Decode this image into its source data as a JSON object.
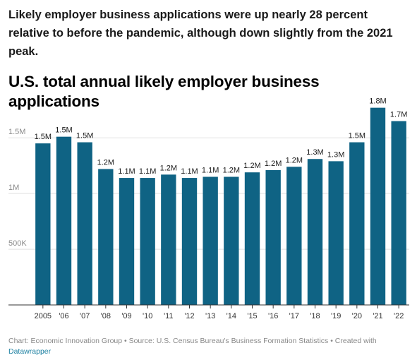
{
  "intro_text": "Likely employer business applications were up nearly 28 percent relative to before the pandemic, although down slightly from the 2021 peak.",
  "chart_data": {
    "type": "bar",
    "title": "U.S. total annual likely employer business applications",
    "categories": [
      "2005",
      "'06",
      "'07",
      "'08",
      "'09",
      "'10",
      "'11",
      "'12",
      "'13",
      "'14",
      "'15",
      "'16",
      "'17",
      "'18",
      "'19",
      "'20",
      "'21",
      "'22"
    ],
    "values": [
      1.45,
      1.51,
      1.46,
      1.22,
      1.14,
      1.14,
      1.17,
      1.14,
      1.15,
      1.15,
      1.19,
      1.21,
      1.24,
      1.31,
      1.29,
      1.46,
      1.77,
      1.65
    ],
    "data_labels": [
      "1.5M",
      "1.5M",
      "1.5M",
      "1.2M",
      "1.1M",
      "1.1M",
      "1.2M",
      "1.1M",
      "1.1M",
      "1.2M",
      "1.2M",
      "1.2M",
      "1.2M",
      "1.3M",
      "1.3M",
      "1.5M",
      "1.8M",
      "1.7M"
    ],
    "y_unit": "millions",
    "ylim": [
      0,
      1.85
    ],
    "y_ticks": [
      {
        "value": 0.5,
        "label": "500K"
      },
      {
        "value": 1.0,
        "label": "1M"
      },
      {
        "value": 1.5,
        "label": "1.5M"
      }
    ],
    "xlabel": "",
    "ylabel": "",
    "grid": true,
    "bar_color": "#0f6384"
  },
  "footer": {
    "text": "Chart: Economic Innovation Group • Source: U.S. Census Bureau's Business Formation Statistics • Created with",
    "link_text": "Datawrapper",
    "link_color": "#1d81a2"
  }
}
